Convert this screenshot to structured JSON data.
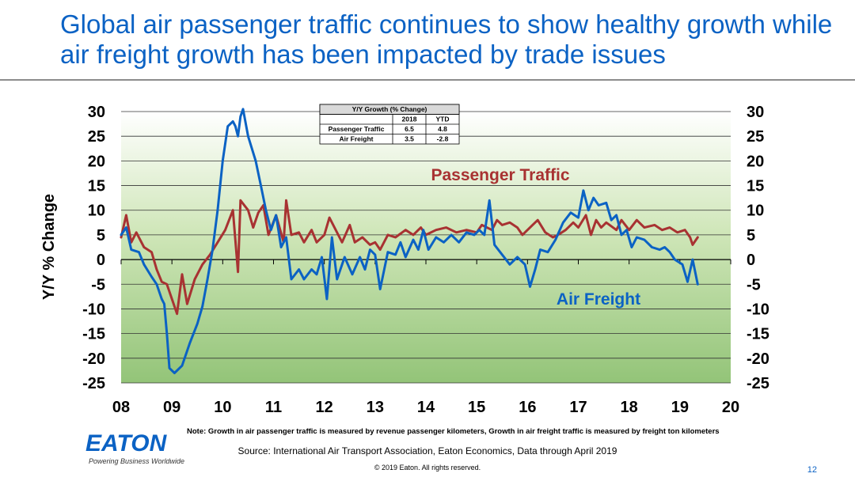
{
  "slide": {
    "title": "Global air passenger traffic continues to show healthy growth while air freight growth has been impacted by trade issues",
    "note": "Note: Growth in air passenger traffic is measured by revenue passenger kilometers, Growth in air freight traffic is measured by freight ton kilometers",
    "source": "Source: International Air Transport Association, Eaton Economics, Data through April 2019",
    "copyright": "© 2019 Eaton. All rights reserved.",
    "page_number": "12",
    "logo_text": "EATON",
    "logo_tagline": "Powering Business Worldwide",
    "colors": {
      "title": "#0b62c4",
      "passenger": "#a83232",
      "freight": "#0b62c4"
    }
  },
  "chart_data": {
    "type": "line",
    "ylabel": "Y/Y % Change",
    "ylim": [
      -25,
      30
    ],
    "yticks": [
      30,
      25,
      20,
      15,
      10,
      5,
      0,
      -5,
      -10,
      -15,
      -20,
      -25
    ],
    "xlim": [
      2008,
      2020
    ],
    "xticks": [
      "08",
      "09",
      "10",
      "11",
      "12",
      "13",
      "14",
      "15",
      "16",
      "17",
      "18",
      "19",
      "20"
    ],
    "grid": true,
    "series": [
      {
        "name": "Passenger Traffic",
        "color": "#a83232",
        "points": [
          [
            2008.0,
            4.5
          ],
          [
            2008.1,
            9.0
          ],
          [
            2008.2,
            3.5
          ],
          [
            2008.3,
            5.5
          ],
          [
            2008.45,
            2.5
          ],
          [
            2008.6,
            1.5
          ],
          [
            2008.7,
            -2.0
          ],
          [
            2008.8,
            -4.5
          ],
          [
            2008.9,
            -5.0
          ],
          [
            2009.0,
            -8.0
          ],
          [
            2009.1,
            -11.0
          ],
          [
            2009.2,
            -3.0
          ],
          [
            2009.3,
            -9.0
          ],
          [
            2009.45,
            -4.0
          ],
          [
            2009.6,
            -1.0
          ],
          [
            2009.75,
            1.0
          ],
          [
            2009.9,
            3.5
          ],
          [
            2010.05,
            6.0
          ],
          [
            2010.2,
            10.0
          ],
          [
            2010.3,
            -2.5
          ],
          [
            2010.35,
            12.0
          ],
          [
            2010.5,
            10.0
          ],
          [
            2010.6,
            6.5
          ],
          [
            2010.7,
            9.5
          ],
          [
            2010.8,
            11.0
          ],
          [
            2010.9,
            5.0
          ],
          [
            2011.05,
            9.0
          ],
          [
            2011.2,
            3.5
          ],
          [
            2011.25,
            12.0
          ],
          [
            2011.35,
            5.0
          ],
          [
            2011.5,
            5.5
          ],
          [
            2011.6,
            3.5
          ],
          [
            2011.75,
            6.0
          ],
          [
            2011.85,
            3.5
          ],
          [
            2012.0,
            5.0
          ],
          [
            2012.1,
            8.5
          ],
          [
            2012.25,
            5.5
          ],
          [
            2012.35,
            3.5
          ],
          [
            2012.5,
            7.0
          ],
          [
            2012.6,
            3.5
          ],
          [
            2012.75,
            4.5
          ],
          [
            2012.9,
            3.0
          ],
          [
            2013.0,
            3.5
          ],
          [
            2013.1,
            2.0
          ],
          [
            2013.25,
            5.0
          ],
          [
            2013.4,
            4.5
          ],
          [
            2013.6,
            6.0
          ],
          [
            2013.75,
            5.0
          ],
          [
            2013.9,
            6.5
          ],
          [
            2014.0,
            5.0
          ],
          [
            2014.2,
            6.0
          ],
          [
            2014.4,
            6.5
          ],
          [
            2014.6,
            5.5
          ],
          [
            2014.8,
            6.0
          ],
          [
            2015.0,
            5.5
          ],
          [
            2015.1,
            7.0
          ],
          [
            2015.3,
            6.0
          ],
          [
            2015.4,
            8.0
          ],
          [
            2015.5,
            7.0
          ],
          [
            2015.65,
            7.5
          ],
          [
            2015.8,
            6.5
          ],
          [
            2015.9,
            5.0
          ],
          [
            2016.1,
            7.0
          ],
          [
            2016.2,
            8.0
          ],
          [
            2016.35,
            5.5
          ],
          [
            2016.5,
            4.5
          ],
          [
            2016.6,
            5.0
          ],
          [
            2016.75,
            6.0
          ],
          [
            2016.9,
            7.5
          ],
          [
            2017.0,
            6.5
          ],
          [
            2017.15,
            9.0
          ],
          [
            2017.25,
            5.0
          ],
          [
            2017.35,
            8.0
          ],
          [
            2017.45,
            6.5
          ],
          [
            2017.55,
            7.5
          ],
          [
            2017.75,
            6.0
          ],
          [
            2017.85,
            8.0
          ],
          [
            2018.0,
            6.0
          ],
          [
            2018.15,
            8.0
          ],
          [
            2018.3,
            6.5
          ],
          [
            2018.5,
            7.0
          ],
          [
            2018.65,
            6.0
          ],
          [
            2018.8,
            6.5
          ],
          [
            2018.95,
            5.5
          ],
          [
            2019.1,
            6.0
          ],
          [
            2019.2,
            4.5
          ],
          [
            2019.25,
            3.0
          ],
          [
            2019.35,
            4.5
          ]
        ]
      },
      {
        "name": "Air Freight",
        "color": "#0b62c4",
        "points": [
          [
            2008.0,
            5.0
          ],
          [
            2008.1,
            6.5
          ],
          [
            2008.2,
            2.0
          ],
          [
            2008.35,
            1.5
          ],
          [
            2008.45,
            -1.0
          ],
          [
            2008.6,
            -3.5
          ],
          [
            2008.7,
            -5.0
          ],
          [
            2008.8,
            -8.0
          ],
          [
            2008.85,
            -9.0
          ],
          [
            2008.9,
            -15.0
          ],
          [
            2008.95,
            -22.0
          ],
          [
            2009.05,
            -23.0
          ],
          [
            2009.2,
            -21.5
          ],
          [
            2009.35,
            -17.0
          ],
          [
            2009.5,
            -13.0
          ],
          [
            2009.6,
            -9.5
          ],
          [
            2009.7,
            -4.0
          ],
          [
            2009.8,
            2.0
          ],
          [
            2009.9,
            10.0
          ],
          [
            2010.0,
            20.0
          ],
          [
            2010.1,
            27.0
          ],
          [
            2010.2,
            28.0
          ],
          [
            2010.25,
            27.0
          ],
          [
            2010.3,
            25.0
          ],
          [
            2010.35,
            29.0
          ],
          [
            2010.4,
            30.5
          ],
          [
            2010.5,
            25.0
          ],
          [
            2010.65,
            20.0
          ],
          [
            2010.75,
            15.0
          ],
          [
            2010.85,
            10.0
          ],
          [
            2010.95,
            6.0
          ],
          [
            2011.05,
            9.0
          ],
          [
            2011.15,
            2.5
          ],
          [
            2011.25,
            4.5
          ],
          [
            2011.35,
            -4.0
          ],
          [
            2011.5,
            -2.0
          ],
          [
            2011.6,
            -4.0
          ],
          [
            2011.75,
            -2.0
          ],
          [
            2011.85,
            -3.0
          ],
          [
            2011.95,
            0.5
          ],
          [
            2012.05,
            -8.0
          ],
          [
            2012.15,
            4.5
          ],
          [
            2012.25,
            -4.0
          ],
          [
            2012.4,
            0.5
          ],
          [
            2012.55,
            -3.0
          ],
          [
            2012.7,
            0.5
          ],
          [
            2012.8,
            -2.0
          ],
          [
            2012.9,
            2.0
          ],
          [
            2013.0,
            1.0
          ],
          [
            2013.1,
            -6.0
          ],
          [
            2013.25,
            1.5
          ],
          [
            2013.4,
            1.0
          ],
          [
            2013.5,
            3.5
          ],
          [
            2013.6,
            0.5
          ],
          [
            2013.75,
            4.0
          ],
          [
            2013.85,
            2.0
          ],
          [
            2013.95,
            6.0
          ],
          [
            2014.05,
            2.0
          ],
          [
            2014.2,
            4.5
          ],
          [
            2014.35,
            3.5
          ],
          [
            2014.5,
            5.0
          ],
          [
            2014.65,
            3.5
          ],
          [
            2014.8,
            5.5
          ],
          [
            2014.95,
            5.0
          ],
          [
            2015.05,
            6.0
          ],
          [
            2015.15,
            5.0
          ],
          [
            2015.25,
            12.0
          ],
          [
            2015.35,
            3.0
          ],
          [
            2015.5,
            1.0
          ],
          [
            2015.65,
            -1.0
          ],
          [
            2015.8,
            0.5
          ],
          [
            2015.95,
            -1.0
          ],
          [
            2016.05,
            -5.5
          ],
          [
            2016.15,
            -2.0
          ],
          [
            2016.25,
            2.0
          ],
          [
            2016.4,
            1.5
          ],
          [
            2016.55,
            4.0
          ],
          [
            2016.7,
            7.5
          ],
          [
            2016.85,
            9.5
          ],
          [
            2017.0,
            8.5
          ],
          [
            2017.1,
            14.0
          ],
          [
            2017.2,
            10.0
          ],
          [
            2017.3,
            12.5
          ],
          [
            2017.4,
            11.0
          ],
          [
            2017.55,
            11.5
          ],
          [
            2017.65,
            8.0
          ],
          [
            2017.75,
            9.0
          ],
          [
            2017.85,
            5.0
          ],
          [
            2017.95,
            6.0
          ],
          [
            2018.05,
            2.5
          ],
          [
            2018.15,
            4.5
          ],
          [
            2018.3,
            4.0
          ],
          [
            2018.45,
            2.5
          ],
          [
            2018.6,
            2.0
          ],
          [
            2018.7,
            2.5
          ],
          [
            2018.8,
            1.5
          ],
          [
            2018.9,
            0.0
          ],
          [
            2019.05,
            -1.0
          ],
          [
            2019.15,
            -4.5
          ],
          [
            2019.25,
            0.0
          ],
          [
            2019.35,
            -5.0
          ]
        ]
      }
    ],
    "annotations": [
      {
        "text": "Passenger Traffic",
        "color": "#a83232"
      },
      {
        "text": "Air Freight",
        "color": "#0b62c4"
      }
    ],
    "table": {
      "title": "Y/Y Growth (% Change)",
      "columns": [
        "",
        "2018",
        "YTD"
      ],
      "rows": [
        [
          "Passenger Traffic",
          "6.5",
          "4.8"
        ],
        [
          "Air Freight",
          "3.5",
          "-2.8"
        ]
      ]
    }
  }
}
